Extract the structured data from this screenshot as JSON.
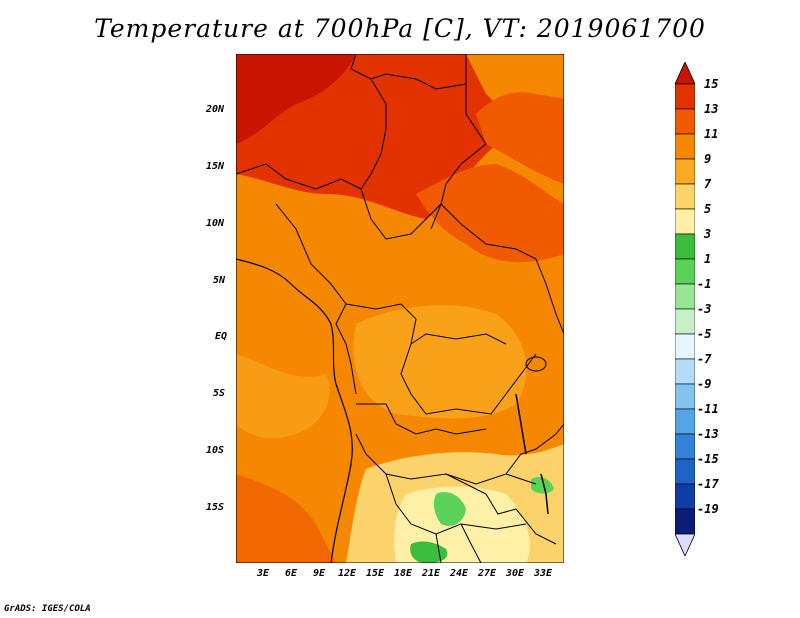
{
  "title": "Temperature at 700hPa [C], VT: 2019061700",
  "footer": "GrADS: IGES/COLA",
  "map": {
    "lat_labels": [
      "20N",
      "15N",
      "10N",
      "5N",
      "EQ",
      "5S",
      "10S",
      "15S"
    ],
    "lon_labels": [
      "3E",
      "6E",
      "9E",
      "12E",
      "15E",
      "18E",
      "21E",
      "24E",
      "27E",
      "30E",
      "33E"
    ]
  },
  "legend": {
    "labels": [
      "15",
      "13",
      "11",
      "9",
      "7",
      "5",
      "3",
      "1",
      "-1",
      "-3",
      "-5",
      "-7",
      "-9",
      "-11",
      "-13",
      "-15",
      "-17",
      "-19"
    ],
    "colors": [
      "#c81400",
      "#e23200",
      "#f05a00",
      "#f58800",
      "#f9aa22",
      "#fcd26b",
      "#fef0a6",
      "#3cbc3c",
      "#5ad25a",
      "#96e696",
      "#c8f0c8",
      "#e6f5ff",
      "#b4dcf8",
      "#82c3f0",
      "#55a5e6",
      "#3282d7",
      "#1e64c8",
      "#0f3ca5",
      "#0a1e78",
      "#dcdcff"
    ]
  }
}
